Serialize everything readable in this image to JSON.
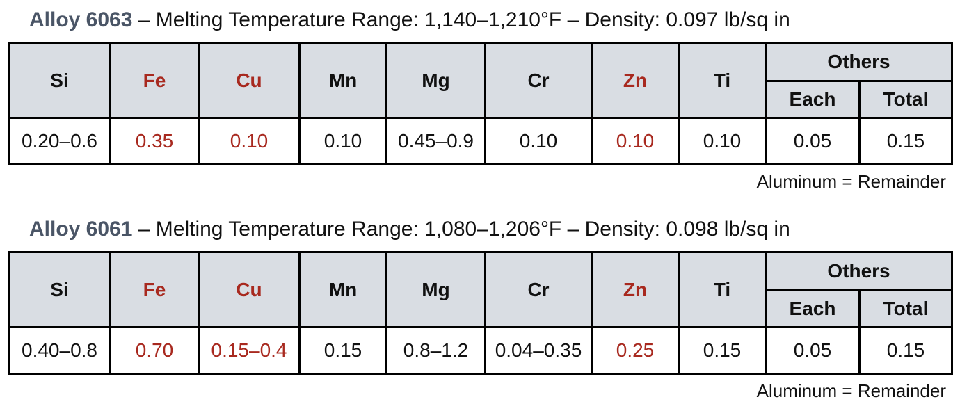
{
  "alloys": [
    {
      "name": "Alloy 6063",
      "description": "– Melting Temperature Range: 1,140–1,210°F – Density: 0.097 lb/sq in",
      "columns": [
        "Si",
        "Fe",
        "Cu",
        "Mn",
        "Mg",
        "Cr",
        "Zn",
        "Ti"
      ],
      "others": "Others",
      "others_sub": [
        "Each",
        "Total"
      ],
      "values": [
        "0.20–0.6",
        "0.35",
        "0.10",
        "0.10",
        "0.45–0.9",
        "0.10",
        "0.10",
        "0.10",
        "0.05",
        "0.15"
      ],
      "footnote": "Aluminum = Remainder"
    },
    {
      "name": "Alloy 6061",
      "description": "– Melting Temperature Range: 1,080–1,206°F – Density: 0.098 lb/sq in",
      "columns": [
        "Si",
        "Fe",
        "Cu",
        "Mn",
        "Mg",
        "Cr",
        "Zn",
        "Ti"
      ],
      "others": "Others",
      "others_sub": [
        "Each",
        "Total"
      ],
      "values": [
        "0.40–0.8",
        "0.70",
        "0.15–0.4",
        "0.15",
        "0.8–1.2",
        "0.04–0.35",
        "0.25",
        "0.15",
        "0.05",
        "0.15"
      ],
      "footnote": "Aluminum = Remainder"
    }
  ]
}
